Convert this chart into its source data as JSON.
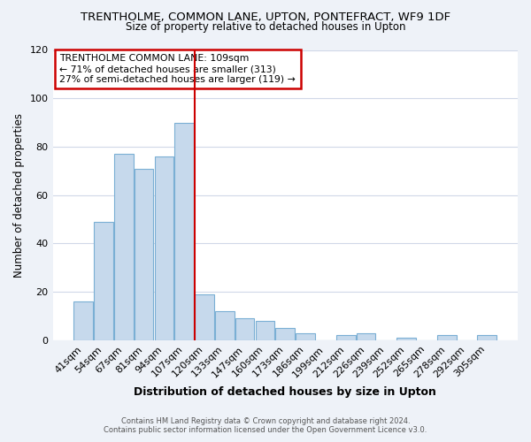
{
  "title": "TRENTHOLME, COMMON LANE, UPTON, PONTEFRACT, WF9 1DF",
  "subtitle": "Size of property relative to detached houses in Upton",
  "xlabel": "Distribution of detached houses by size in Upton",
  "ylabel": "Number of detached properties",
  "bar_labels": [
    "41sqm",
    "54sqm",
    "67sqm",
    "81sqm",
    "94sqm",
    "107sqm",
    "120sqm",
    "133sqm",
    "147sqm",
    "160sqm",
    "173sqm",
    "186sqm",
    "199sqm",
    "212sqm",
    "226sqm",
    "239sqm",
    "252sqm",
    "265sqm",
    "278sqm",
    "292sqm",
    "305sqm"
  ],
  "bar_values": [
    16,
    49,
    77,
    71,
    76,
    90,
    19,
    12,
    9,
    8,
    5,
    3,
    0,
    2,
    3,
    0,
    1,
    0,
    2,
    0,
    2
  ],
  "bar_color": "#c6d9ec",
  "bar_edge_color": "#7aafd4",
  "vline_x": 5.5,
  "vline_color": "#cc0000",
  "annotation_title": "TRENTHOLME COMMON LANE: 109sqm",
  "annotation_line1": "← 71% of detached houses are smaller (313)",
  "annotation_line2": "27% of semi-detached houses are larger (119) →",
  "annotation_box_color": "#ffffff",
  "annotation_box_edge": "#cc0000",
  "ylim": [
    0,
    120
  ],
  "yticks": [
    0,
    20,
    40,
    60,
    80,
    100,
    120
  ],
  "footer_line1": "Contains HM Land Registry data © Crown copyright and database right 2024.",
  "footer_line2": "Contains public sector information licensed under the Open Government Licence v3.0.",
  "background_color": "#eef2f8",
  "plot_bg_color": "#ffffff",
  "grid_color": "#d0d8e8"
}
